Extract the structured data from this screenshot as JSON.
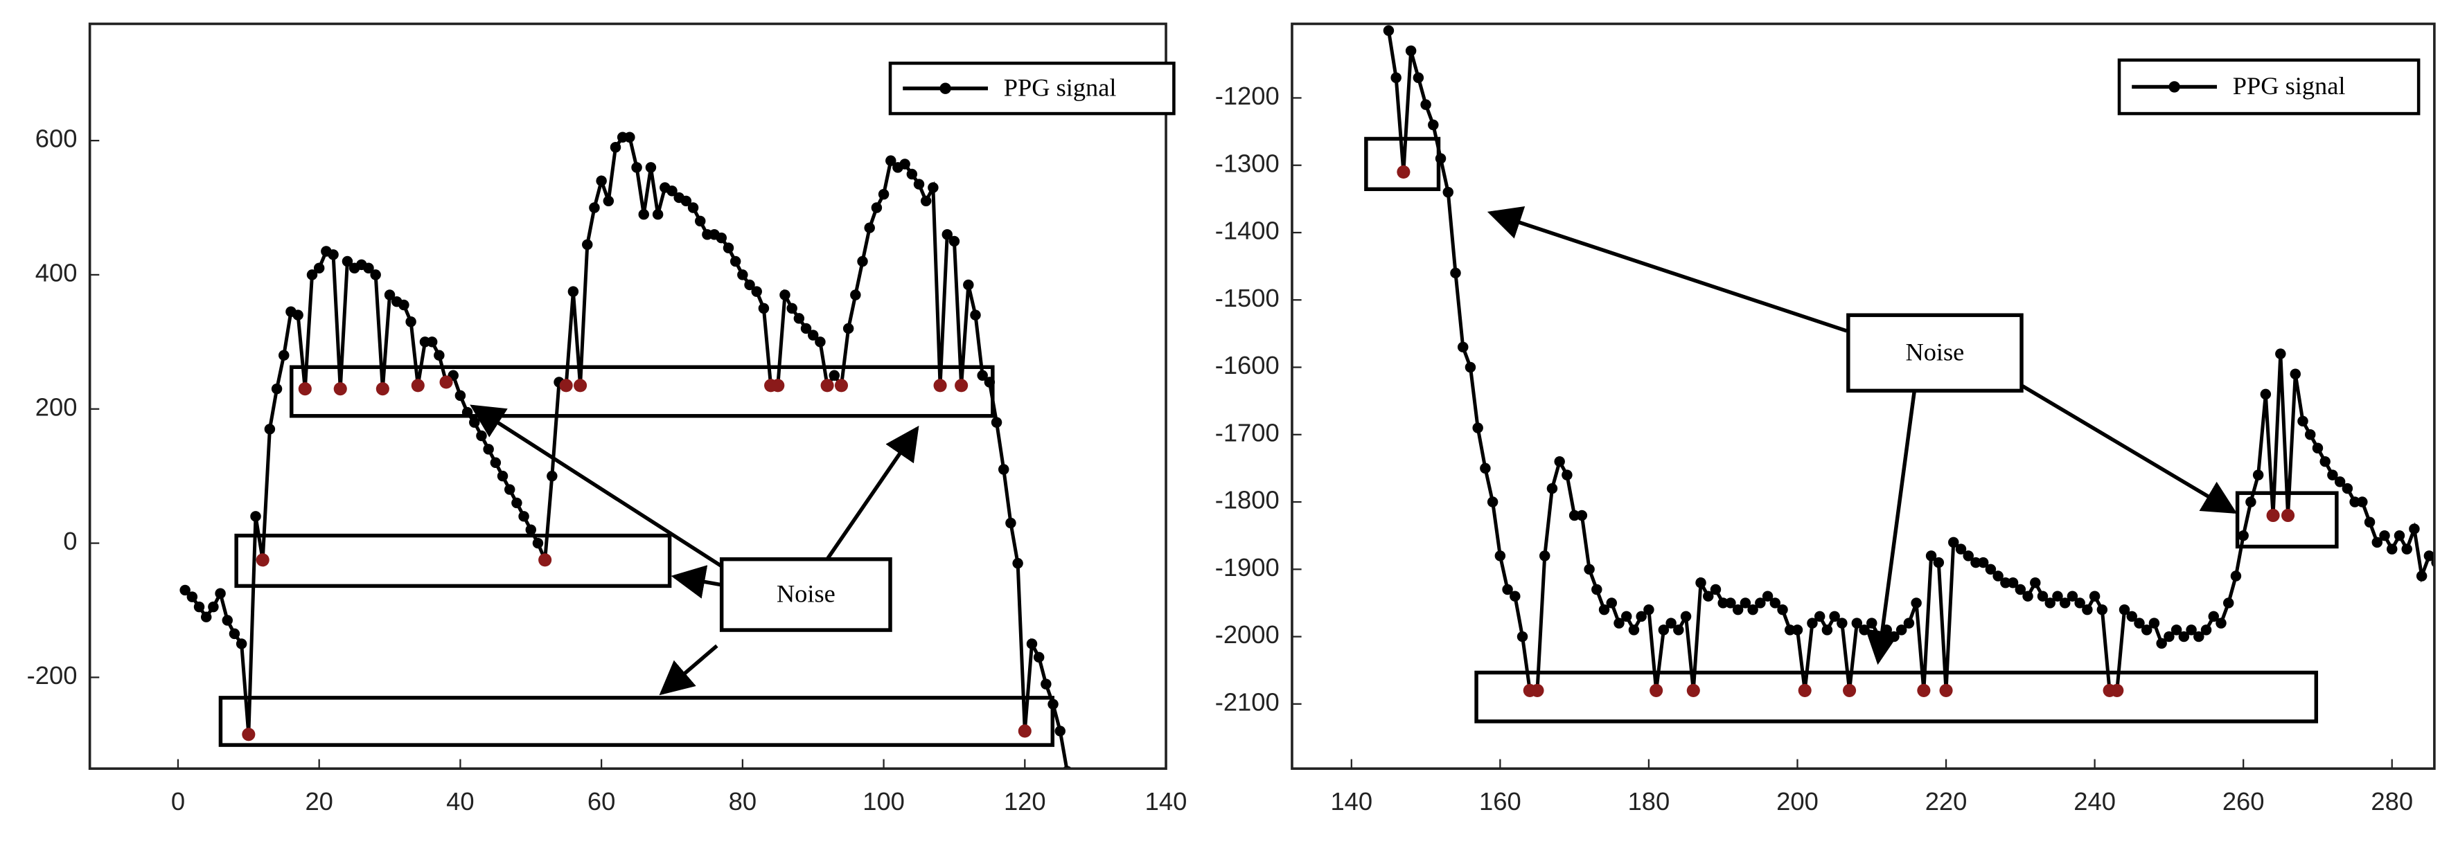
{
  "chart_data": [
    {
      "type": "line",
      "legend": "upper right",
      "annotation": "Noise",
      "xlim": [
        -12.5,
        140
      ],
      "xticks": [
        0,
        20,
        40,
        60,
        80,
        100,
        120,
        140
      ],
      "ylim": [
        -336,
        774
      ],
      "yticks": [
        -200,
        0,
        200,
        400,
        600
      ],
      "series": [
        {
          "name": "PPG signal",
          "color": "#000000",
          "x": [
            1,
            2,
            3,
            4,
            5,
            6,
            7,
            8,
            9,
            10,
            11,
            12,
            13,
            14,
            15,
            16,
            17,
            18,
            19,
            20,
            21,
            22,
            23,
            24,
            25,
            26,
            27,
            28,
            29,
            30,
            31,
            32,
            33,
            34,
            35,
            36,
            37,
            38,
            39,
            40,
            41,
            42,
            43,
            44,
            45,
            46,
            47,
            48,
            49,
            50,
            51,
            52,
            53,
            54,
            55,
            56,
            57,
            58,
            59,
            60,
            61,
            62,
            63,
            64,
            65,
            66,
            67,
            68,
            69,
            70,
            71,
            72,
            73,
            74,
            75,
            76,
            77,
            78,
            79,
            80,
            81,
            82,
            83,
            84,
            85,
            86,
            87,
            88,
            89,
            90,
            91,
            92,
            93,
            94,
            95,
            96,
            97,
            98,
            99,
            100,
            101,
            102,
            103,
            104,
            105,
            106,
            107,
            108,
            109,
            110,
            111,
            112,
            113,
            114,
            115,
            116,
            117,
            118,
            119,
            120,
            121,
            122,
            123,
            124,
            125,
            126
          ],
          "values": [
            -70,
            -80,
            -95,
            -110,
            -95,
            -75,
            -115,
            -135,
            -150,
            -285,
            40,
            -25,
            170,
            230,
            280,
            345,
            340,
            230,
            400,
            410,
            435,
            430,
            230,
            420,
            410,
            415,
            410,
            400,
            230,
            370,
            360,
            355,
            330,
            235,
            300,
            300,
            280,
            240,
            250,
            220,
            195,
            180,
            160,
            140,
            120,
            100,
            80,
            60,
            40,
            20,
            0,
            -25,
            100,
            240,
            235,
            375,
            235,
            445,
            500,
            540,
            510,
            590,
            605,
            605,
            560,
            490,
            560,
            490,
            530,
            525,
            515,
            510,
            500,
            480,
            460,
            460,
            455,
            440,
            420,
            400,
            385,
            375,
            350,
            235,
            235,
            370,
            350,
            335,
            320,
            310,
            300,
            235,
            250,
            235,
            320,
            370,
            420,
            470,
            500,
            520,
            570,
            560,
            565,
            550,
            535,
            510,
            530,
            235,
            460,
            450,
            235,
            385,
            340,
            250,
            240,
            180,
            110,
            30,
            -30,
            -280,
            -150,
            -170,
            -210,
            -240,
            -280,
            -340
          ]
        }
      ],
      "noise": {
        "color": "#8b1a1a",
        "x": [
          10,
          12,
          18,
          23,
          29,
          34,
          38,
          52,
          55,
          57,
          84,
          85,
          92,
          94,
          108,
          111,
          120
        ],
        "values": [
          -285,
          -25,
          230,
          230,
          230,
          235,
          240,
          -25,
          235,
          235,
          235,
          235,
          235,
          235,
          235,
          235,
          -280
        ]
      }
    },
    {
      "type": "line",
      "legend": "upper right",
      "annotation": "Noise",
      "xlim": [
        132,
        285.7
      ],
      "xticks": [
        140,
        160,
        180,
        200,
        220,
        240,
        260,
        280
      ],
      "ylim": [
        -2196,
        -1090
      ],
      "yticks": [
        -2100,
        -2000,
        -1900,
        -1800,
        -1700,
        -1600,
        -1500,
        -1400,
        -1300,
        -1200
      ],
      "series": [
        {
          "name": "PPG signal",
          "color": "#000000",
          "x": [
            145,
            146,
            147,
            148,
            149,
            150,
            151,
            152,
            153,
            154,
            155,
            156,
            157,
            158,
            159,
            160,
            161,
            162,
            163,
            164,
            165,
            166,
            167,
            168,
            169,
            170,
            171,
            172,
            173,
            174,
            175,
            176,
            177,
            178,
            179,
            180,
            181,
            182,
            183,
            184,
            185,
            186,
            187,
            188,
            189,
            190,
            191,
            192,
            193,
            194,
            195,
            196,
            197,
            198,
            199,
            200,
            201,
            202,
            203,
            204,
            205,
            206,
            207,
            208,
            209,
            210,
            211,
            212,
            213,
            214,
            215,
            216,
            217,
            218,
            219,
            220,
            221,
            222,
            223,
            224,
            225,
            226,
            227,
            228,
            229,
            230,
            231,
            232,
            233,
            234,
            235,
            236,
            237,
            238,
            239,
            240,
            241,
            242,
            243,
            244,
            245,
            246,
            247,
            248,
            249,
            250,
            251,
            252,
            253,
            254,
            255,
            256,
            257,
            258,
            259,
            260,
            261,
            262,
            263,
            264,
            265,
            266,
            267,
            268,
            269,
            270,
            271,
            272,
            273,
            274,
            275,
            276,
            277,
            278,
            279,
            280,
            281,
            282,
            283,
            284,
            285,
            286
          ],
          "values": [
            -1100,
            -1170,
            -1310,
            -1130,
            -1170,
            -1210,
            -1240,
            -1290,
            -1340,
            -1460,
            -1570,
            -1600,
            -1690,
            -1750,
            -1800,
            -1880,
            -1930,
            -1940,
            -2000,
            -2080,
            -2080,
            -1880,
            -1780,
            -1740,
            -1760,
            -1820,
            -1820,
            -1900,
            -1930,
            -1960,
            -1950,
            -1980,
            -1970,
            -1990,
            -1970,
            -1960,
            -2080,
            -1990,
            -1980,
            -1990,
            -1970,
            -2080,
            -1920,
            -1940,
            -1930,
            -1950,
            -1950,
            -1960,
            -1950,
            -1960,
            -1950,
            -1940,
            -1950,
            -1960,
            -1990,
            -1990,
            -2080,
            -1980,
            -1970,
            -1990,
            -1970,
            -1980,
            -2080,
            -1980,
            -1990,
            -1980,
            -2000,
            -1990,
            -2000,
            -1990,
            -1980,
            -1950,
            -2080,
            -1880,
            -1890,
            -2080,
            -1860,
            -1870,
            -1880,
            -1890,
            -1890,
            -1900,
            -1910,
            -1920,
            -1920,
            -1930,
            -1940,
            -1920,
            -1940,
            -1950,
            -1940,
            -1950,
            -1940,
            -1950,
            -1960,
            -1940,
            -1960,
            -2080,
            -2080,
            -1960,
            -1970,
            -1980,
            -1990,
            -1980,
            -2010,
            -2000,
            -1990,
            -2000,
            -1990,
            -2000,
            -1990,
            -1970,
            -1980,
            -1950,
            -1910,
            -1850,
            -1800,
            -1760,
            -1640,
            -1820,
            -1580,
            -1820,
            -1610,
            -1680,
            -1700,
            -1720,
            -1740,
            -1760,
            -1770,
            -1780,
            -1800,
            -1800,
            -1830,
            -1860,
            -1850,
            -1870,
            -1850,
            -1870,
            -1840,
            -1910,
            -1880,
            -1890
          ]
        }
      ],
      "noise": {
        "color": "#8b1a1a",
        "x": [
          147,
          164,
          165,
          181,
          186,
          201,
          207,
          217,
          220,
          242,
          243,
          264,
          266
        ],
        "values": [
          -1310,
          -2080,
          -2080,
          -2080,
          -2080,
          -2080,
          -2080,
          -2080,
          -2080,
          -2080,
          -2080,
          -1820,
          -1820
        ]
      }
    }
  ]
}
